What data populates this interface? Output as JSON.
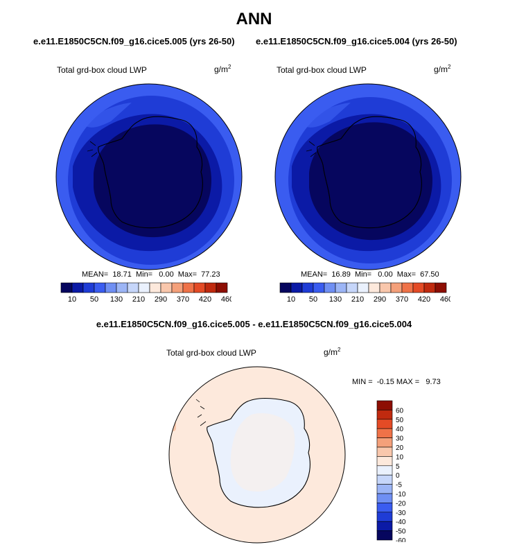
{
  "title": "ANN",
  "case_left_title": "e.e11.E1850C5CN.f09_g16.cice5.005 (yrs 26-50)",
  "case_right_title": "e.e11.E1850C5CN.f09_g16.cice5.004 (yrs 26-50)",
  "panels": [
    {
      "label": "Total grd-box cloud LWP",
      "units_base": "g/m",
      "units_exp": "2",
      "stats": "MEAN=  18.71  Min=   0.00  Max=  77.23"
    },
    {
      "label": "Total grd-box cloud LWP",
      "units_base": "g/m",
      "units_exp": "2",
      "stats": "MEAN=  16.89  Min=   0.00  Max=  67.50"
    }
  ],
  "colorbar": {
    "colors": [
      "#06065e",
      "#0b1aa6",
      "#1f3cd6",
      "#3a5cf0",
      "#6f8ff3",
      "#9cb5f6",
      "#c6d6fa",
      "#eaf1fd",
      "#fde9dc",
      "#f9c7ac",
      "#f4a07a",
      "#ef7248",
      "#e44b26",
      "#c02a0f",
      "#8d0e03"
    ],
    "tick_labels": [
      "10",
      "50",
      "130",
      "210",
      "290",
      "370",
      "420",
      "460"
    ]
  },
  "diff_title": "e.e11.E1850C5CN.f09_g16.cice5.005 - e.e11.E1850C5CN.f09_g16.cice5.004",
  "diff_panel": {
    "label": "Total grd-box cloud LWP",
    "units_base": "g/m",
    "units_exp": "2",
    "stats": "MIN =  -0.15 MAX =   9.73"
  },
  "diff_colorbar": {
    "colors": [
      "#8d0e03",
      "#c02a0f",
      "#e44b26",
      "#ef7248",
      "#f4a07a",
      "#f9c7ac",
      "#fde9dc",
      "#eaf1fd",
      "#c6d6fa",
      "#9cb5f6",
      "#6f8ff3",
      "#3a5cf0",
      "#1f3cd6",
      "#0b1aa6",
      "#06065e"
    ],
    "tick_labels": [
      "60",
      "50",
      "40",
      "30",
      "20",
      "10",
      "5",
      "0",
      "-5",
      "-10",
      "-20",
      "-30",
      "-40",
      "-50",
      "-60"
    ]
  }
}
